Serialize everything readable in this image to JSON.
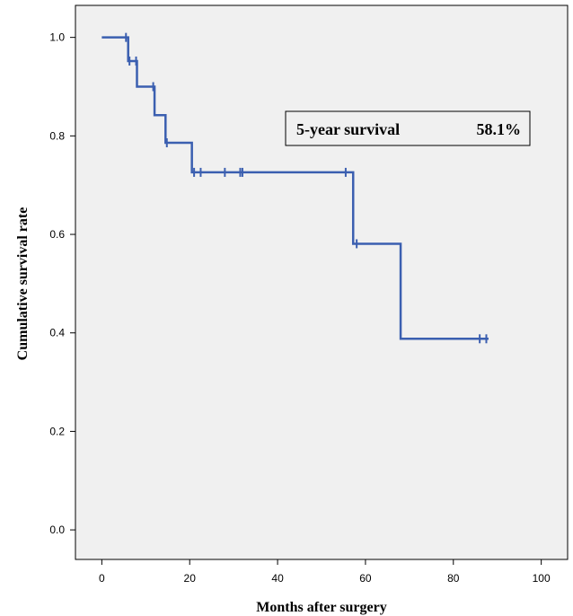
{
  "chart_data": {
    "type": "line",
    "xlabel": "Months after surgery",
    "ylabel": "Cumulative survival rate",
    "xlim": [
      -6,
      106
    ],
    "ylim": [
      -0.06,
      1.065
    ],
    "xticks": [
      0,
      20,
      40,
      60,
      80,
      100
    ],
    "yticks": [
      0.0,
      0.2,
      0.4,
      0.6,
      0.8,
      1.0
    ],
    "xtick_labels": [
      "0",
      "20",
      "40",
      "60",
      "80",
      "100"
    ],
    "ytick_labels": [
      "0.0",
      "0.2",
      "0.4",
      "0.6",
      "0.8",
      "1.0"
    ],
    "grid": false,
    "legend": "none",
    "background_color": "#f0f0f0",
    "line_color": "#3b5fb0",
    "series": [
      {
        "step_points": [
          {
            "x": 0,
            "y": 1.0
          },
          {
            "x": 6,
            "y": 0.952
          },
          {
            "x": 8,
            "y": 0.9
          },
          {
            "x": 12,
            "y": 0.842
          },
          {
            "x": 14.5,
            "y": 0.786
          },
          {
            "x": 20.5,
            "y": 0.726
          },
          {
            "x": 57.2,
            "y": 0.581
          },
          {
            "x": 68,
            "y": 0.388
          }
        ],
        "end_x": 88,
        "censored": [
          {
            "x": 5.5,
            "y": 1.0
          },
          {
            "x": 6.3,
            "y": 0.952
          },
          {
            "x": 7.8,
            "y": 0.952
          },
          {
            "x": 11.7,
            "y": 0.9
          },
          {
            "x": 14.8,
            "y": 0.786
          },
          {
            "x": 21,
            "y": 0.726
          },
          {
            "x": 22.5,
            "y": 0.726
          },
          {
            "x": 28,
            "y": 0.726
          },
          {
            "x": 31.5,
            "y": 0.726
          },
          {
            "x": 32,
            "y": 0.726
          },
          {
            "x": 55.5,
            "y": 0.726
          },
          {
            "x": 58,
            "y": 0.581
          },
          {
            "x": 86,
            "y": 0.388
          },
          {
            "x": 87.5,
            "y": 0.388
          }
        ]
      }
    ],
    "annotation": {
      "label": "5-year survival",
      "value": "58.1%"
    }
  }
}
